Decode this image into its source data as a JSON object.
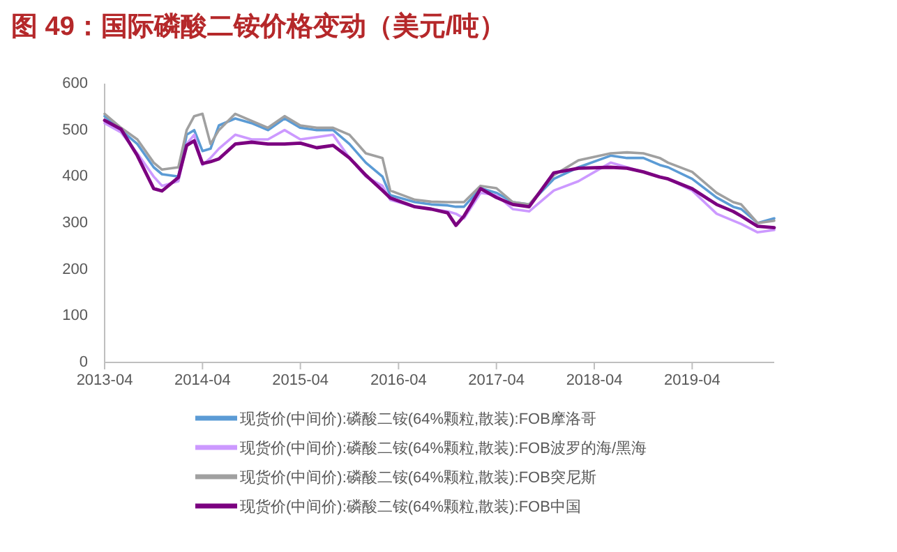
{
  "chart_data": {
    "type": "line",
    "title": "图 49：国际磷酸二铵价格变动（美元/吨）",
    "x": [
      "2013-04",
      "2013-06",
      "2013-08",
      "2013-10",
      "2013-11",
      "2014-01",
      "2014-02",
      "2014-03",
      "2014-04",
      "2014-05",
      "2014-06",
      "2014-08",
      "2014-10",
      "2014-12",
      "2015-02",
      "2015-04",
      "2015-06",
      "2015-08",
      "2015-10",
      "2015-12",
      "2016-02",
      "2016-03",
      "2016-06",
      "2016-08",
      "2016-10",
      "2016-11",
      "2016-12",
      "2017-02",
      "2017-04",
      "2017-06",
      "2017-08",
      "2017-11",
      "2018-02",
      "2018-06",
      "2018-08",
      "2018-10",
      "2018-12",
      "2019-01",
      "2019-04",
      "2019-07",
      "2019-09",
      "2019-10",
      "2019-12",
      "2020-02"
    ],
    "series": [
      {
        "name": "现货价(中间价):磷酸二铵(64%颗粒,散装):FOB摩洛哥",
        "color": "#5b9bd5",
        "values": [
          530,
          500,
          470,
          420,
          405,
          400,
          490,
          500,
          455,
          460,
          510,
          525,
          515,
          500,
          525,
          505,
          500,
          500,
          470,
          430,
          400,
          360,
          345,
          340,
          338,
          335,
          335,
          375,
          365,
          345,
          340,
          395,
          420,
          445,
          440,
          440,
          425,
          420,
          395,
          355,
          335,
          330,
          300,
          310
        ]
      },
      {
        "name": "现货价(中间价):磷酸二铵(64%颗粒,散装):FOB波罗的海/黑海",
        "color": "#cc99ff",
        "values": [
          515,
          495,
          450,
          400,
          380,
          390,
          470,
          490,
          425,
          440,
          460,
          490,
          480,
          480,
          500,
          480,
          485,
          490,
          440,
          400,
          380,
          350,
          335,
          330,
          325,
          320,
          310,
          365,
          360,
          330,
          325,
          370,
          390,
          430,
          420,
          410,
          400,
          395,
          370,
          320,
          305,
          298,
          280,
          285
        ]
      },
      {
        "name": "现货价(中间价):磷酸二铵(64%颗粒,散装):FOB突尼斯",
        "color": "#a0a0a0",
        "values": [
          535,
          505,
          480,
          430,
          415,
          420,
          500,
          530,
          535,
          470,
          500,
          535,
          520,
          505,
          530,
          510,
          505,
          505,
          490,
          450,
          440,
          370,
          350,
          346,
          345,
          345,
          345,
          380,
          375,
          345,
          340,
          403,
          435,
          450,
          452,
          450,
          440,
          430,
          410,
          365,
          345,
          340,
          300,
          305
        ]
      },
      {
        "name": "现货价(中间价):磷酸二铵(64%颗粒,散装):FOB中国",
        "color": "#7b0080",
        "values": [
          521,
          502,
          445,
          374,
          369,
          398,
          467,
          477,
          428,
          432,
          438,
          470,
          474,
          470,
          470,
          472,
          462,
          467,
          440,
          403,
          370,
          354,
          335,
          330,
          322,
          295,
          315,
          374,
          355,
          340,
          335,
          408,
          418,
          420,
          418,
          410,
          399,
          395,
          374,
          340,
          325,
          315,
          293,
          290
        ]
      }
    ],
    "xlim": [
      "2013-04",
      "2020-02"
    ],
    "xticks": [
      "2013-04",
      "2014-04",
      "2015-04",
      "2016-04",
      "2017-04",
      "2018-04",
      "2019-04"
    ],
    "ylim": [
      0,
      600
    ],
    "yticks": [
      0,
      100,
      200,
      300,
      400,
      500,
      600
    ],
    "legend": "bottom",
    "grid": false
  }
}
